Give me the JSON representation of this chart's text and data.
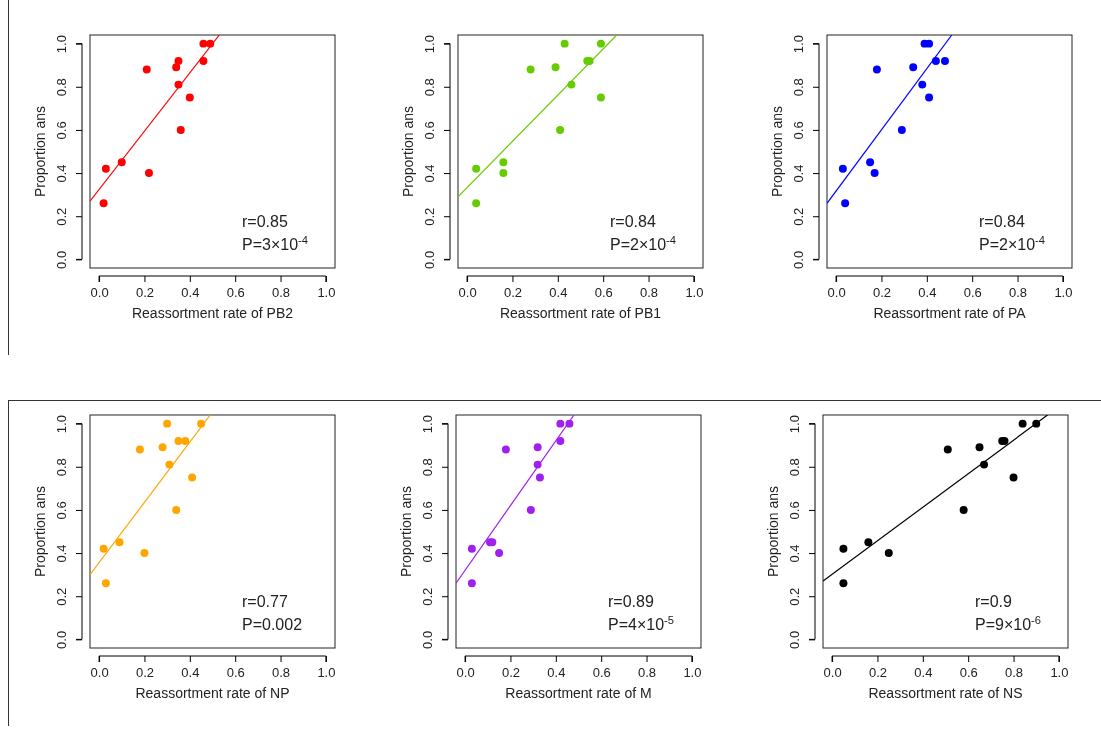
{
  "chart_data": [
    {
      "type": "scatter",
      "xlabel": "Reassortment rate of PB2",
      "ylabel": "Proportion ans",
      "xlim": [
        -0.04,
        1.04
      ],
      "ylim": [
        -0.04,
        1.04
      ],
      "marker": "circle",
      "xticks": [
        {
          "value": 0,
          "label": "0.0"
        },
        {
          "value": 0.2,
          "label": "0.2"
        },
        {
          "value": 0.4,
          "label": "0.4"
        },
        {
          "value": 0.6,
          "label": "0.6"
        },
        {
          "value": 0.8,
          "label": "0.8"
        },
        {
          "value": 1,
          "label": "1.0"
        }
      ],
      "yticks": [
        {
          "value": 0,
          "label": "0.0"
        },
        {
          "value": 0.2,
          "label": "0.2"
        },
        {
          "value": 0.4,
          "label": "0.4"
        },
        {
          "value": 0.6,
          "label": "0.6"
        },
        {
          "value": 0.8,
          "label": "0.8"
        },
        {
          "value": 1,
          "label": "1.0"
        }
      ],
      "series": [
        {
          "color": "#ff0000",
          "x": [
            0.02,
            0.03,
            0.1,
            0.22,
            0.21,
            0.34,
            0.35,
            0.35,
            0.36,
            0.4,
            0.46,
            0.46,
            0.49
          ],
          "values": [
            0.26,
            0.42,
            0.45,
            0.4,
            0.88,
            0.89,
            0.92,
            0.81,
            0.6,
            0.75,
            0.92,
            1.0,
            1.0
          ]
        },
        {
          "type": "line",
          "marker": "none",
          "color": "#ff0000",
          "x": [
            -0.04,
            0.53
          ],
          "values": [
            0.27,
            1.04
          ]
        }
      ],
      "annotations": [
        "r=0.85",
        "P=3×10$^{-4}$"
      ]
    },
    {
      "type": "scatter",
      "xlabel": "Reassortment rate of PB1",
      "ylabel": "Proportion ans",
      "xlim": [
        -0.04,
        1.04
      ],
      "ylim": [
        -0.04,
        1.04
      ],
      "marker": "circle",
      "xticks": [
        {
          "value": 0,
          "label": "0.0"
        },
        {
          "value": 0.2,
          "label": "0.2"
        },
        {
          "value": 0.4,
          "label": "0.4"
        },
        {
          "value": 0.6,
          "label": "0.6"
        },
        {
          "value": 0.8,
          "label": "0.8"
        },
        {
          "value": 1,
          "label": "1.0"
        }
      ],
      "yticks": [
        {
          "value": 0,
          "label": "0.0"
        },
        {
          "value": 0.2,
          "label": "0.2"
        },
        {
          "value": 0.4,
          "label": "0.4"
        },
        {
          "value": 0.6,
          "label": "0.6"
        },
        {
          "value": 0.8,
          "label": "0.8"
        },
        {
          "value": 1,
          "label": "1.0"
        }
      ],
      "series": [
        {
          "color": "#66cc00",
          "x": [
            0.04,
            0.04,
            0.16,
            0.16,
            0.28,
            0.39,
            0.43,
            0.46,
            0.41,
            0.53,
            0.54,
            0.59,
            0.59
          ],
          "values": [
            0.26,
            0.42,
            0.45,
            0.4,
            0.88,
            0.89,
            1.0,
            0.81,
            0.6,
            0.92,
            0.92,
            1.0,
            0.75
          ]
        },
        {
          "type": "line",
          "marker": "none",
          "color": "#66cc00",
          "x": [
            -0.04,
            0.66
          ],
          "values": [
            0.29,
            1.04
          ]
        }
      ],
      "annotations": [
        "r=0.84",
        "P=2×10$^{-4}$"
      ]
    },
    {
      "type": "scatter",
      "xlabel": "Reassortment rate of PA",
      "ylabel": "Proportion ans",
      "xlim": [
        -0.04,
        1.04
      ],
      "ylim": [
        -0.04,
        1.04
      ],
      "marker": "circle",
      "xticks": [
        {
          "value": 0,
          "label": "0.0"
        },
        {
          "value": 0.2,
          "label": "0.2"
        },
        {
          "value": 0.4,
          "label": "0.4"
        },
        {
          "value": 0.6,
          "label": "0.6"
        },
        {
          "value": 0.8,
          "label": "0.8"
        },
        {
          "value": 1,
          "label": "1.0"
        }
      ],
      "yticks": [
        {
          "value": 0,
          "label": "0.0"
        },
        {
          "value": 0.2,
          "label": "0.2"
        },
        {
          "value": 0.4,
          "label": "0.4"
        },
        {
          "value": 0.6,
          "label": "0.6"
        },
        {
          "value": 0.8,
          "label": "0.8"
        },
        {
          "value": 1,
          "label": "1.0"
        }
      ],
      "series": [
        {
          "color": "#0000ff",
          "x": [
            0.04,
            0.03,
            0.15,
            0.17,
            0.18,
            0.34,
            0.39,
            0.41,
            0.38,
            0.41,
            0.29,
            0.44,
            0.48
          ],
          "values": [
            0.26,
            0.42,
            0.45,
            0.4,
            0.88,
            0.89,
            1.0,
            1.0,
            0.81,
            0.75,
            0.6,
            0.92,
            0.92
          ]
        },
        {
          "type": "line",
          "marker": "none",
          "color": "#0000ff",
          "x": [
            -0.04,
            0.51
          ],
          "values": [
            0.26,
            1.04
          ]
        }
      ],
      "annotations": [
        "r=0.84",
        "P=2×10$^{-4}$"
      ]
    },
    {
      "type": "scatter",
      "xlabel": "Reassortment rate of NP",
      "ylabel": "Proportion ans",
      "xlim": [
        -0.04,
        1.04
      ],
      "ylim": [
        -0.04,
        1.04
      ],
      "marker": "circle",
      "xticks": [
        {
          "value": 0,
          "label": "0.0"
        },
        {
          "value": 0.2,
          "label": "0.2"
        },
        {
          "value": 0.4,
          "label": "0.4"
        },
        {
          "value": 0.6,
          "label": "0.6"
        },
        {
          "value": 0.8,
          "label": "0.8"
        },
        {
          "value": 1,
          "label": "1.0"
        }
      ],
      "yticks": [
        {
          "value": 0,
          "label": "0.0"
        },
        {
          "value": 0.2,
          "label": "0.2"
        },
        {
          "value": 0.4,
          "label": "0.4"
        },
        {
          "value": 0.6,
          "label": "0.6"
        },
        {
          "value": 0.8,
          "label": "0.8"
        },
        {
          "value": 1,
          "label": "1.0"
        }
      ],
      "series": [
        {
          "color": "#ffa500",
          "x": [
            0.03,
            0.02,
            0.09,
            0.2,
            0.18,
            0.28,
            0.3,
            0.31,
            0.34,
            0.35,
            0.38,
            0.41,
            0.45
          ],
          "values": [
            0.26,
            0.42,
            0.45,
            0.4,
            0.88,
            0.89,
            1.0,
            0.81,
            0.6,
            0.92,
            0.92,
            0.75,
            1.0
          ]
        },
        {
          "type": "line",
          "marker": "none",
          "color": "#ffa500",
          "x": [
            -0.04,
            0.49
          ],
          "values": [
            0.3,
            1.04
          ]
        }
      ],
      "annotations": [
        "r=0.77",
        "P=0.002"
      ]
    },
    {
      "type": "scatter",
      "xlabel": "Reassortment rate of M",
      "ylabel": "Proportion ans",
      "xlim": [
        -0.04,
        1.04
      ],
      "ylim": [
        -0.04,
        1.04
      ],
      "marker": "circle",
      "xticks": [
        {
          "value": 0,
          "label": "0.0"
        },
        {
          "value": 0.2,
          "label": "0.2"
        },
        {
          "value": 0.4,
          "label": "0.4"
        },
        {
          "value": 0.6,
          "label": "0.6"
        },
        {
          "value": 0.8,
          "label": "0.8"
        },
        {
          "value": 1,
          "label": "1.0"
        }
      ],
      "yticks": [
        {
          "value": 0,
          "label": "0.0"
        },
        {
          "value": 0.2,
          "label": "0.2"
        },
        {
          "value": 0.4,
          "label": "0.4"
        },
        {
          "value": 0.6,
          "label": "0.6"
        },
        {
          "value": 0.8,
          "label": "0.8"
        },
        {
          "value": 1,
          "label": "1.0"
        }
      ],
      "series": [
        {
          "color": "#a020f0",
          "x": [
            0.03,
            0.03,
            0.11,
            0.12,
            0.15,
            0.18,
            0.32,
            0.32,
            0.33,
            0.29,
            0.42,
            0.46,
            0.42
          ],
          "values": [
            0.26,
            0.42,
            0.45,
            0.45,
            0.4,
            0.88,
            0.89,
            0.81,
            0.75,
            0.6,
            1.0,
            1.0,
            0.92
          ]
        },
        {
          "type": "line",
          "marker": "none",
          "color": "#a020f0",
          "x": [
            -0.04,
            0.48
          ],
          "values": [
            0.26,
            1.04
          ]
        }
      ],
      "annotations": [
        "r=0.89",
        "P=4×10$^{-5}$"
      ]
    },
    {
      "type": "scatter",
      "xlabel": "Reassortment rate of NS",
      "ylabel": "Proportion ans",
      "xlim": [
        -0.04,
        1.04
      ],
      "ylim": [
        -0.04,
        1.04
      ],
      "marker": "circle",
      "xticks": [
        {
          "value": 0,
          "label": "0.0"
        },
        {
          "value": 0.2,
          "label": "0.2"
        },
        {
          "value": 0.4,
          "label": "0.4"
        },
        {
          "value": 0.6,
          "label": "0.6"
        },
        {
          "value": 0.8,
          "label": "0.8"
        },
        {
          "value": 1,
          "label": "1.0"
        }
      ],
      "yticks": [
        {
          "value": 0,
          "label": "0.0"
        },
        {
          "value": 0.2,
          "label": "0.2"
        },
        {
          "value": 0.4,
          "label": "0.4"
        },
        {
          "value": 0.6,
          "label": "0.6"
        },
        {
          "value": 0.8,
          "label": "0.8"
        },
        {
          "value": 1,
          "label": "1.0"
        }
      ],
      "series": [
        {
          "color": "#000000",
          "x": [
            0.05,
            0.05,
            0.16,
            0.25,
            0.51,
            0.65,
            0.67,
            0.58,
            0.75,
            0.76,
            0.8,
            0.84,
            0.9
          ],
          "values": [
            0.26,
            0.42,
            0.45,
            0.4,
            0.88,
            0.89,
            0.81,
            0.6,
            0.92,
            0.92,
            0.75,
            1.0,
            1.0
          ]
        },
        {
          "type": "line",
          "marker": "none",
          "color": "#000000",
          "x": [
            -0.04,
            0.95
          ],
          "values": [
            0.27,
            1.04
          ]
        }
      ],
      "annotations": [
        "r=0.9",
        "P=9×10$^{-6}$"
      ]
    }
  ]
}
